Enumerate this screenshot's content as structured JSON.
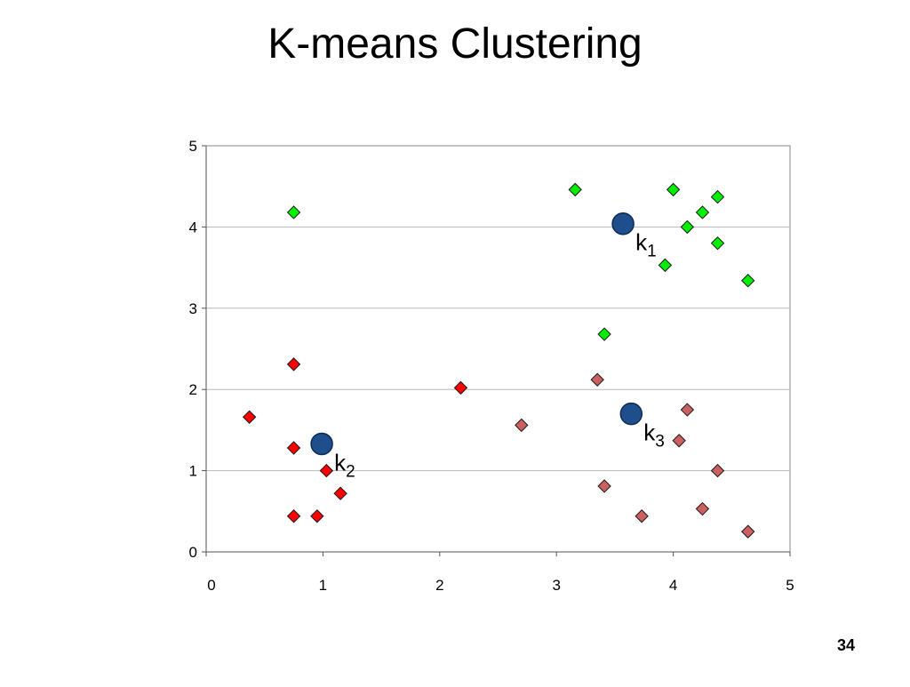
{
  "slide": {
    "title": "K-means Clustering",
    "page_number": "34"
  },
  "chart_data": {
    "type": "scatter",
    "title": "",
    "xlabel": "",
    "ylabel": "",
    "xlim": [
      0,
      5
    ],
    "ylim": [
      0,
      5
    ],
    "x_ticks": [
      "0",
      "1",
      "2",
      "3",
      "4",
      "5"
    ],
    "y_ticks": [
      "0",
      "1",
      "2",
      "3",
      "4",
      "5"
    ],
    "grid": "horizontal",
    "legend": "none",
    "series": [
      {
        "color": "#00ee00",
        "marker": "diamond",
        "points": [
          [
            0.75,
            4.18
          ],
          [
            3.16,
            4.46
          ],
          [
            4.0,
            4.46
          ],
          [
            4.25,
            4.18
          ],
          [
            4.38,
            4.37
          ],
          [
            4.12,
            4.0
          ],
          [
            4.38,
            3.8
          ],
          [
            3.93,
            3.53
          ],
          [
            4.64,
            3.34
          ],
          [
            3.41,
            2.68
          ]
        ]
      },
      {
        "color": "#ff0000",
        "marker": "diamond",
        "points": [
          [
            0.75,
            2.31
          ],
          [
            0.37,
            1.66
          ],
          [
            0.75,
            1.28
          ],
          [
            1.03,
            1.0
          ],
          [
            1.15,
            0.72
          ],
          [
            0.75,
            0.44
          ],
          [
            0.95,
            0.44
          ],
          [
            2.18,
            2.02
          ]
        ]
      },
      {
        "color": "#cc6060",
        "marker": "diamond",
        "points": [
          [
            3.35,
            2.12
          ],
          [
            2.7,
            1.56
          ],
          [
            4.12,
            1.75
          ],
          [
            4.05,
            1.37
          ],
          [
            4.38,
            1.0
          ],
          [
            3.41,
            0.81
          ],
          [
            3.73,
            0.44
          ],
          [
            4.25,
            0.53
          ],
          [
            4.64,
            0.25
          ]
        ]
      }
    ],
    "centroids": [
      {
        "label": "k",
        "subscript": "1",
        "x": 3.57,
        "y": 4.04
      },
      {
        "label": "k",
        "subscript": "2",
        "x": 0.99,
        "y": 1.33
      },
      {
        "label": "k",
        "subscript": "3",
        "x": 3.64,
        "y": 1.7
      }
    ],
    "centroid_color": "#1f4e8c"
  }
}
